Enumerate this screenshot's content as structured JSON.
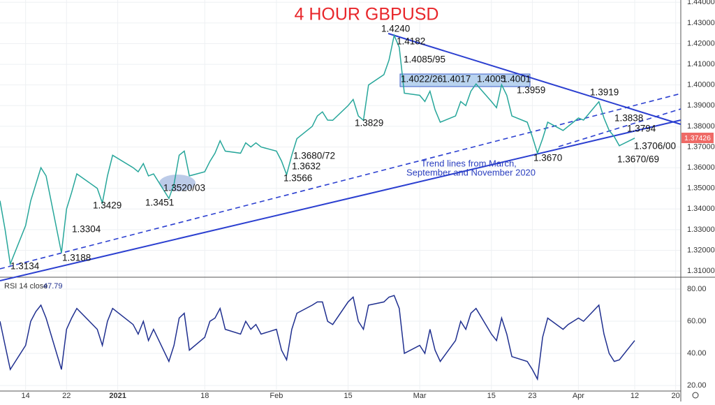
{
  "chart_data": [
    {
      "type": "line",
      "title": "4 HOUR GBPUSD",
      "annotations": [
        "1.4240",
        "1.4182",
        "1.4085/95",
        "1.4022/26",
        "1.4017",
        "1.4005",
        "1.4001",
        "1.3959",
        "1.3919",
        "1.3838",
        "1.3794",
        "1.3706/00",
        "1.3670/69",
        "1.3670",
        "1.3829",
        "1.3680/72",
        "1.3632",
        "1.3566",
        "1.3520/03",
        "1.3451",
        "1.3429",
        "1.3304",
        "1.3188",
        "1.3134",
        "Trend lines from March,",
        "September and November 2020"
      ],
      "last_price_label": "1.37426",
      "x": [
        "2020-12-09",
        "2020-12-10",
        "2020-12-11",
        "2020-12-14",
        "2020-12-15",
        "2020-12-16",
        "2020-12-17",
        "2020-12-18",
        "2020-12-21",
        "2020-12-22",
        "2020-12-23",
        "2020-12-24",
        "2020-12-28",
        "2020-12-29",
        "2020-12-30",
        "2020-12-31",
        "2021-01-04",
        "2021-01-05",
        "2021-01-06",
        "2021-01-07",
        "2021-01-08",
        "2021-01-11",
        "2021-01-12",
        "2021-01-13",
        "2021-01-14",
        "2021-01-15",
        "2021-01-18",
        "2021-01-19",
        "2021-01-20",
        "2021-01-21",
        "2021-01-22",
        "2021-01-25",
        "2021-01-26",
        "2021-01-27",
        "2021-01-28",
        "2021-01-29",
        "2021-02-01",
        "2021-02-02",
        "2021-02-03",
        "2021-02-04",
        "2021-02-05",
        "2021-02-08",
        "2021-02-09",
        "2021-02-10",
        "2021-02-11",
        "2021-02-12",
        "2021-02-15",
        "2021-02-16",
        "2021-02-17",
        "2021-02-18",
        "2021-02-19",
        "2021-02-22",
        "2021-02-23",
        "2021-02-24",
        "2021-02-25",
        "2021-02-26",
        "2021-03-01",
        "2021-03-02",
        "2021-03-03",
        "2021-03-04",
        "2021-03-05",
        "2021-03-08",
        "2021-03-09",
        "2021-03-10",
        "2021-03-11",
        "2021-03-12",
        "2021-03-15",
        "2021-03-16",
        "2021-03-17",
        "2021-03-18",
        "2021-03-19",
        "2021-03-22",
        "2021-03-23",
        "2021-03-24",
        "2021-03-25",
        "2021-03-26",
        "2021-03-29",
        "2021-03-30",
        "2021-03-31",
        "2021-04-01",
        "2021-04-02",
        "2021-04-05",
        "2021-04-06",
        "2021-04-07",
        "2021-04-08",
        "2021-04-09",
        "2021-04-12"
      ],
      "series": [
        {
          "name": "GBPUSD",
          "color": "#26a69a",
          "values": [
            1.344,
            1.33,
            1.3134,
            1.332,
            1.344,
            1.352,
            1.36,
            1.356,
            1.3188,
            1.34,
            1.348,
            1.357,
            1.35,
            1.3429,
            1.356,
            1.366,
            1.36,
            1.358,
            1.362,
            1.356,
            1.357,
            1.3451,
            1.352,
            1.366,
            1.368,
            1.356,
            1.358,
            1.363,
            1.367,
            1.373,
            1.368,
            1.367,
            1.372,
            1.37,
            1.372,
            1.37,
            1.368,
            1.3632,
            1.3566,
            1.366,
            1.374,
            1.38,
            1.385,
            1.387,
            1.383,
            1.3829,
            1.39,
            1.393,
            1.385,
            1.3829,
            1.4,
            1.405,
            1.412,
            1.424,
            1.4182,
            1.396,
            1.395,
            1.392,
            1.397,
            1.388,
            1.382,
            1.385,
            1.392,
            1.39,
            1.397,
            1.4005,
            1.392,
            1.389,
            1.4001,
            1.395,
            1.385,
            1.382,
            1.375,
            1.367,
            1.374,
            1.382,
            1.378,
            1.38,
            1.382,
            1.384,
            1.383,
            1.3919,
            1.384,
            1.378,
            1.375,
            1.3706,
            1.3743
          ]
        }
      ],
      "xlim": [
        "2020-12-09",
        "2021-04-21"
      ],
      "xticks": [
        {
          "value": "2020-12-14",
          "label": "14"
        },
        {
          "value": "2020-12-22",
          "label": "22"
        },
        {
          "value": "2021-01-01",
          "label": "2021"
        },
        {
          "value": "2021-01-18",
          "label": "18"
        },
        {
          "value": "2021-02-01",
          "label": "Feb"
        },
        {
          "value": "2021-02-15",
          "label": "15"
        },
        {
          "value": "2021-03-01",
          "label": "Mar"
        },
        {
          "value": "2021-03-15",
          "label": "15"
        },
        {
          "value": "2021-03-23",
          "label": "23"
        },
        {
          "value": "2021-04-01",
          "label": "Apr"
        },
        {
          "value": "2021-04-12",
          "label": "12"
        },
        {
          "value": "2021-04-20",
          "label": "20"
        }
      ],
      "ylim": [
        1.307,
        1.4411
      ],
      "yticks": [
        {
          "value": 1.31,
          "label": "1.31000"
        },
        {
          "value": 1.32,
          "label": "1.32000"
        },
        {
          "value": 1.33,
          "label": "1.33000"
        },
        {
          "value": 1.34,
          "label": "1.34000"
        },
        {
          "value": 1.35,
          "label": "1.35000"
        },
        {
          "value": 1.36,
          "label": "1.36000"
        },
        {
          "value": 1.37,
          "label": "1.37000"
        },
        {
          "value": 1.38,
          "label": "1.38000"
        },
        {
          "value": 1.39,
          "label": "1.39000"
        },
        {
          "value": 1.4,
          "label": "1.40000"
        },
        {
          "value": 1.41,
          "label": "1.41000"
        },
        {
          "value": 1.42,
          "label": "1.42000"
        },
        {
          "value": 1.43,
          "label": "1.43000"
        },
        {
          "value": 1.44,
          "label": "1.44000"
        }
      ],
      "grid": true
    },
    {
      "type": "line",
      "title": "RSI 14 close",
      "last_value_label": "47.79",
      "series": [
        {
          "name": "RSI",
          "color": "#1f2f8f",
          "values": [
            60,
            45,
            30,
            45,
            60,
            66,
            70,
            62,
            30,
            55,
            62,
            68,
            55,
            45,
            60,
            68,
            58,
            52,
            60,
            48,
            55,
            35,
            45,
            62,
            65,
            42,
            50,
            60,
            62,
            68,
            55,
            52,
            60,
            55,
            58,
            52,
            55,
            42,
            36,
            55,
            65,
            70,
            72,
            72,
            60,
            58,
            72,
            75,
            60,
            55,
            70,
            72,
            75,
            76,
            68,
            40,
            45,
            40,
            55,
            42,
            35,
            48,
            60,
            55,
            65,
            68,
            52,
            48,
            62,
            52,
            38,
            35,
            30,
            24,
            50,
            62,
            55,
            58,
            60,
            62,
            60,
            70,
            52,
            40,
            35,
            36,
            48
          ]
        }
      ],
      "ylim": [
        15.7,
        86.1
      ],
      "yticks": [
        {
          "value": 20,
          "label": "20.00"
        },
        {
          "value": 40,
          "label": "40.00"
        },
        {
          "value": 60,
          "label": "60.00"
        },
        {
          "value": 80,
          "label": "80.00"
        }
      ],
      "grid": true
    }
  ]
}
